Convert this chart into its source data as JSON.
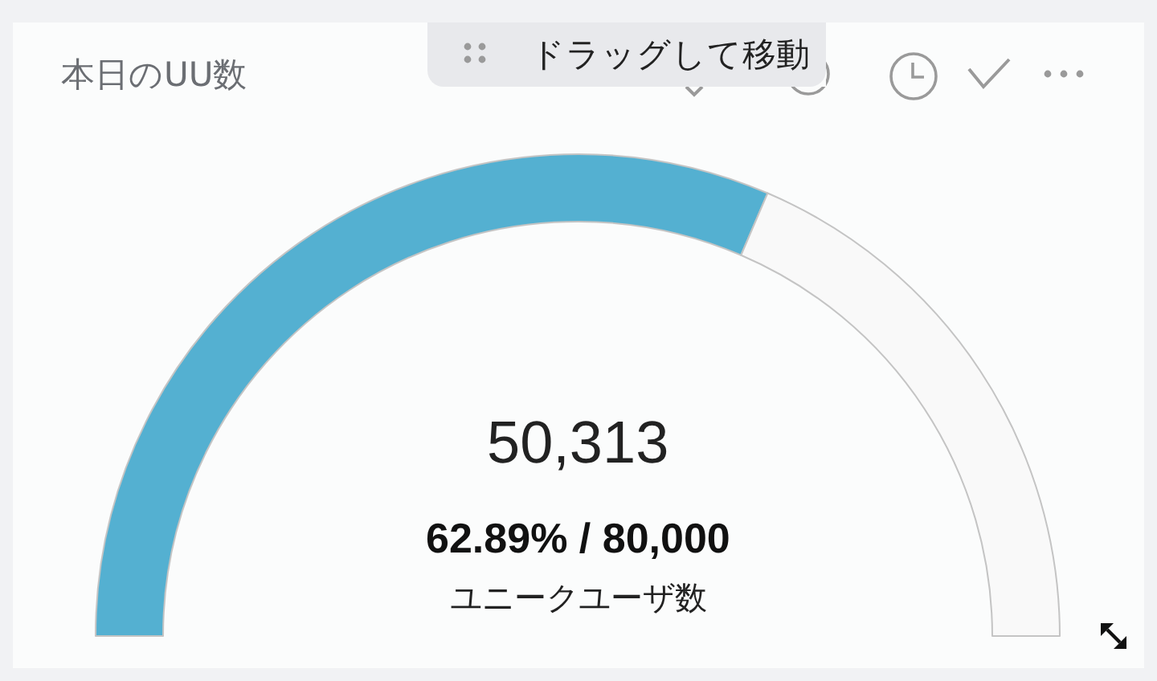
{
  "chart_data": {
    "type": "donut",
    "title": "本日のUU数",
    "categories": [
      null,
      null
    ],
    "values": [
      62.89,
      37.11
    ],
    "colors": [
      "#54b0d1",
      "#f9f9f9"
    ],
    "annotations": [
      "50,313",
      "62.89% / 80,000",
      "ユニークユーザ数",
      "ドラッグして移動"
    ]
  }
}
